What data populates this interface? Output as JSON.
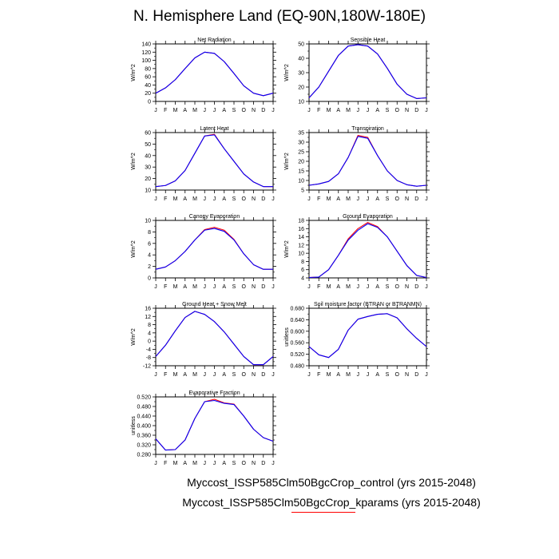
{
  "title": "N. Hemisphere Land (EQ-90N,180W-180E)",
  "colors": {
    "control": "#ff0000",
    "kparams": "#0000ff",
    "axis": "#000000"
  },
  "legend": {
    "entries": [
      {
        "label": "Myccost_ISSP585Clm50BgcCrop_control (yrs 2015-2048)",
        "color": "#ff0000"
      },
      {
        "label": "Myccost_ISSP585Clm50BgcCrop_kparams (yrs 2015-2048)",
        "color": "#0000ff"
      }
    ]
  },
  "chart_data": [
    {
      "type": "line",
      "title": "Net Radiation",
      "ylabel": "W/m^2",
      "categories": [
        "J",
        "F",
        "M",
        "A",
        "M",
        "J",
        "J",
        "A",
        "S",
        "O",
        "N",
        "D",
        "J"
      ],
      "ylim": [
        0,
        140
      ],
      "yticks": [
        "0",
        "20",
        "40",
        "60",
        "80",
        "100",
        "120",
        "140"
      ],
      "series": [
        {
          "name": "control",
          "values": [
            20,
            33,
            53,
            80,
            106,
            120,
            117,
            97,
            68,
            38,
            20,
            14,
            20
          ]
        },
        {
          "name": "kparams",
          "values": [
            20,
            33,
            53,
            80,
            106,
            120,
            117,
            97,
            68,
            38,
            20,
            14,
            20
          ]
        }
      ]
    },
    {
      "type": "line",
      "title": "Sensible Heat",
      "ylabel": "W/m^2",
      "categories": [
        "J",
        "F",
        "M",
        "A",
        "M",
        "J",
        "J",
        "A",
        "S",
        "O",
        "N",
        "D",
        "J"
      ],
      "ylim": [
        10,
        50
      ],
      "yticks": [
        "10",
        "20",
        "30",
        "40",
        "50"
      ],
      "series": [
        {
          "name": "control",
          "values": [
            12.5,
            20,
            31,
            42,
            48.5,
            49.5,
            48.5,
            43,
            33,
            22,
            15,
            12,
            12.5
          ]
        },
        {
          "name": "kparams",
          "values": [
            12.5,
            20,
            31,
            42,
            48.5,
            49.5,
            48.5,
            43,
            33,
            22,
            15,
            12,
            12.5
          ]
        }
      ]
    },
    {
      "type": "line",
      "title": "Latent Heat",
      "ylabel": "W/m^2",
      "categories": [
        "J",
        "F",
        "M",
        "A",
        "M",
        "J",
        "J",
        "A",
        "S",
        "O",
        "N",
        "D",
        "J"
      ],
      "ylim": [
        10,
        60
      ],
      "yticks": [
        "10",
        "20",
        "30",
        "40",
        "50",
        "60"
      ],
      "series": [
        {
          "name": "control",
          "values": [
            13,
            14,
            18,
            27,
            42,
            57,
            58.5,
            46,
            35,
            24,
            17,
            13,
            13
          ]
        },
        {
          "name": "kparams",
          "values": [
            13,
            14,
            18,
            27,
            42,
            57,
            58,
            46,
            35,
            24,
            17,
            13,
            13
          ]
        }
      ]
    },
    {
      "type": "line",
      "title": "Transpiration",
      "ylabel": "W/m^2",
      "categories": [
        "J",
        "F",
        "M",
        "A",
        "M",
        "J",
        "J",
        "A",
        "S",
        "O",
        "N",
        "D",
        "J"
      ],
      "ylim": [
        5,
        35
      ],
      "yticks": [
        "5",
        "10",
        "15",
        "20",
        "25",
        "30",
        "35"
      ],
      "series": [
        {
          "name": "control",
          "values": [
            7.5,
            8.2,
            9.5,
            13.5,
            22,
            33.5,
            32.5,
            23,
            15,
            10,
            7.8,
            7,
            7.5
          ]
        },
        {
          "name": "kparams",
          "values": [
            7.5,
            8.2,
            9.5,
            13.5,
            22,
            33,
            32,
            23,
            15,
            10,
            7.8,
            7,
            7.5
          ]
        }
      ]
    },
    {
      "type": "line",
      "title": "Canopy Evaporation",
      "ylabel": "W/m^2",
      "categories": [
        "J",
        "F",
        "M",
        "A",
        "M",
        "J",
        "J",
        "A",
        "S",
        "O",
        "N",
        "D",
        "J"
      ],
      "ylim": [
        0,
        10
      ],
      "yticks": [
        "0",
        "2",
        "4",
        "6",
        "8",
        "10"
      ],
      "series": [
        {
          "name": "control",
          "values": [
            1.5,
            1.9,
            3,
            4.6,
            6.6,
            8.4,
            8.8,
            8.3,
            6.7,
            4.2,
            2.3,
            1.5,
            1.5
          ]
        },
        {
          "name": "kparams",
          "values": [
            1.5,
            1.9,
            3,
            4.6,
            6.6,
            8.3,
            8.6,
            8.1,
            6.6,
            4.2,
            2.3,
            1.5,
            1.5
          ]
        }
      ]
    },
    {
      "type": "line",
      "title": "Ground Evaporation",
      "ylabel": "W/m^2",
      "categories": [
        "J",
        "F",
        "M",
        "A",
        "M",
        "J",
        "J",
        "A",
        "S",
        "O",
        "N",
        "D",
        "J"
      ],
      "ylim": [
        4,
        18
      ],
      "yticks": [
        "4",
        "6",
        "8",
        "10",
        "12",
        "14",
        "16",
        "18"
      ],
      "series": [
        {
          "name": "control",
          "values": [
            4.1,
            4.2,
            6,
            9.5,
            13.5,
            16,
            17.5,
            16.5,
            14,
            10.5,
            7,
            4.6,
            4.1
          ]
        },
        {
          "name": "kparams",
          "values": [
            4.1,
            4.2,
            6,
            9.5,
            13.2,
            15.6,
            17.2,
            16.3,
            14,
            10.5,
            7,
            4.6,
            4.1
          ]
        }
      ]
    },
    {
      "type": "line",
      "title": "Ground Heat + Snow Melt",
      "ylabel": "W/m^2",
      "categories": [
        "J",
        "F",
        "M",
        "A",
        "M",
        "J",
        "J",
        "A",
        "S",
        "O",
        "N",
        "D",
        "J"
      ],
      "ylim": [
        -12,
        16
      ],
      "yticks": [
        "-12",
        "-8",
        "-4",
        "0",
        "4",
        "8",
        "12",
        "16"
      ],
      "series": [
        {
          "name": "control",
          "values": [
            -7.5,
            -2,
            5,
            11.5,
            14.5,
            13,
            9.5,
            4.5,
            -1.5,
            -7.5,
            -11.5,
            -11.5,
            -7.5
          ]
        },
        {
          "name": "kparams",
          "values": [
            -7.5,
            -2,
            5,
            11.5,
            14.5,
            13,
            9.5,
            4.5,
            -1.5,
            -7.5,
            -11.5,
            -11.5,
            -7.5
          ]
        }
      ]
    },
    {
      "type": "line",
      "title": "Soil moisture factor (BTRAN or BTRANMN)",
      "ylabel": "unitless",
      "categories": [
        "J",
        "F",
        "M",
        "A",
        "M",
        "J",
        "J",
        "A",
        "S",
        "O",
        "N",
        "D",
        "J"
      ],
      "ylim": [
        0.48,
        0.69
      ],
      "yticks": [
        "0.480",
        "0.520",
        "0.560",
        "0.600",
        "0.640",
        "0.680"
      ],
      "series": [
        {
          "name": "control",
          "values": [
            0.55,
            0.52,
            0.51,
            0.54,
            0.61,
            0.65,
            0.66,
            0.668,
            0.67,
            0.655,
            0.615,
            0.58,
            0.55
          ]
        },
        {
          "name": "kparams",
          "values": [
            0.55,
            0.52,
            0.51,
            0.54,
            0.61,
            0.65,
            0.66,
            0.668,
            0.67,
            0.655,
            0.615,
            0.58,
            0.55
          ]
        }
      ]
    },
    {
      "type": "line",
      "title": "Evaporative Fraction",
      "ylabel": "unitless",
      "categories": [
        "J",
        "F",
        "M",
        "A",
        "M",
        "J",
        "J",
        "A",
        "S",
        "O",
        "N",
        "D",
        "J"
      ],
      "ylim": [
        0.28,
        0.52
      ],
      "yticks": [
        "0.280",
        "0.320",
        "0.360",
        "0.400",
        "0.440",
        "0.480",
        "0.520"
      ],
      "series": [
        {
          "name": "control",
          "values": [
            0.345,
            0.298,
            0.3,
            0.34,
            0.43,
            0.5,
            0.51,
            0.495,
            0.49,
            0.44,
            0.385,
            0.35,
            0.335
          ]
        },
        {
          "name": "kparams",
          "values": [
            0.345,
            0.298,
            0.3,
            0.34,
            0.43,
            0.5,
            0.505,
            0.493,
            0.488,
            0.44,
            0.385,
            0.35,
            0.335
          ]
        }
      ]
    }
  ]
}
